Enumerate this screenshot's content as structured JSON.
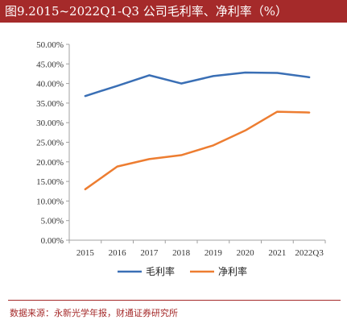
{
  "header": {
    "title": "图9.2015~2022Q1-Q3 公司毛利率、净利率（%）"
  },
  "footer": {
    "source": "数据来源：永新光学年报，财通证券研究所"
  },
  "chart_data": {
    "type": "line",
    "title": "图9.2015~2022Q1-Q3 公司毛利率、净利率（%）",
    "categories": [
      "2015",
      "2016",
      "2017",
      "2018",
      "2019",
      "2020",
      "2021",
      "2022Q3"
    ],
    "series": [
      {
        "name": "毛利率",
        "color": "#3a6fb5",
        "values": [
          36.8,
          39.4,
          42.1,
          40.0,
          41.9,
          42.8,
          42.7,
          41.6
        ]
      },
      {
        "name": "净利率",
        "color": "#ed7d31",
        "values": [
          13.0,
          18.8,
          20.7,
          21.7,
          24.2,
          28.0,
          32.8,
          32.6
        ]
      }
    ],
    "yticks": [
      "0.00%",
      "5.00%",
      "10.00%",
      "15.00%",
      "20.00%",
      "25.00%",
      "30.00%",
      "35.00%",
      "40.00%",
      "45.00%",
      "50.00%"
    ],
    "ylim": [
      0,
      50
    ],
    "grid": false,
    "legend": "bottom"
  }
}
